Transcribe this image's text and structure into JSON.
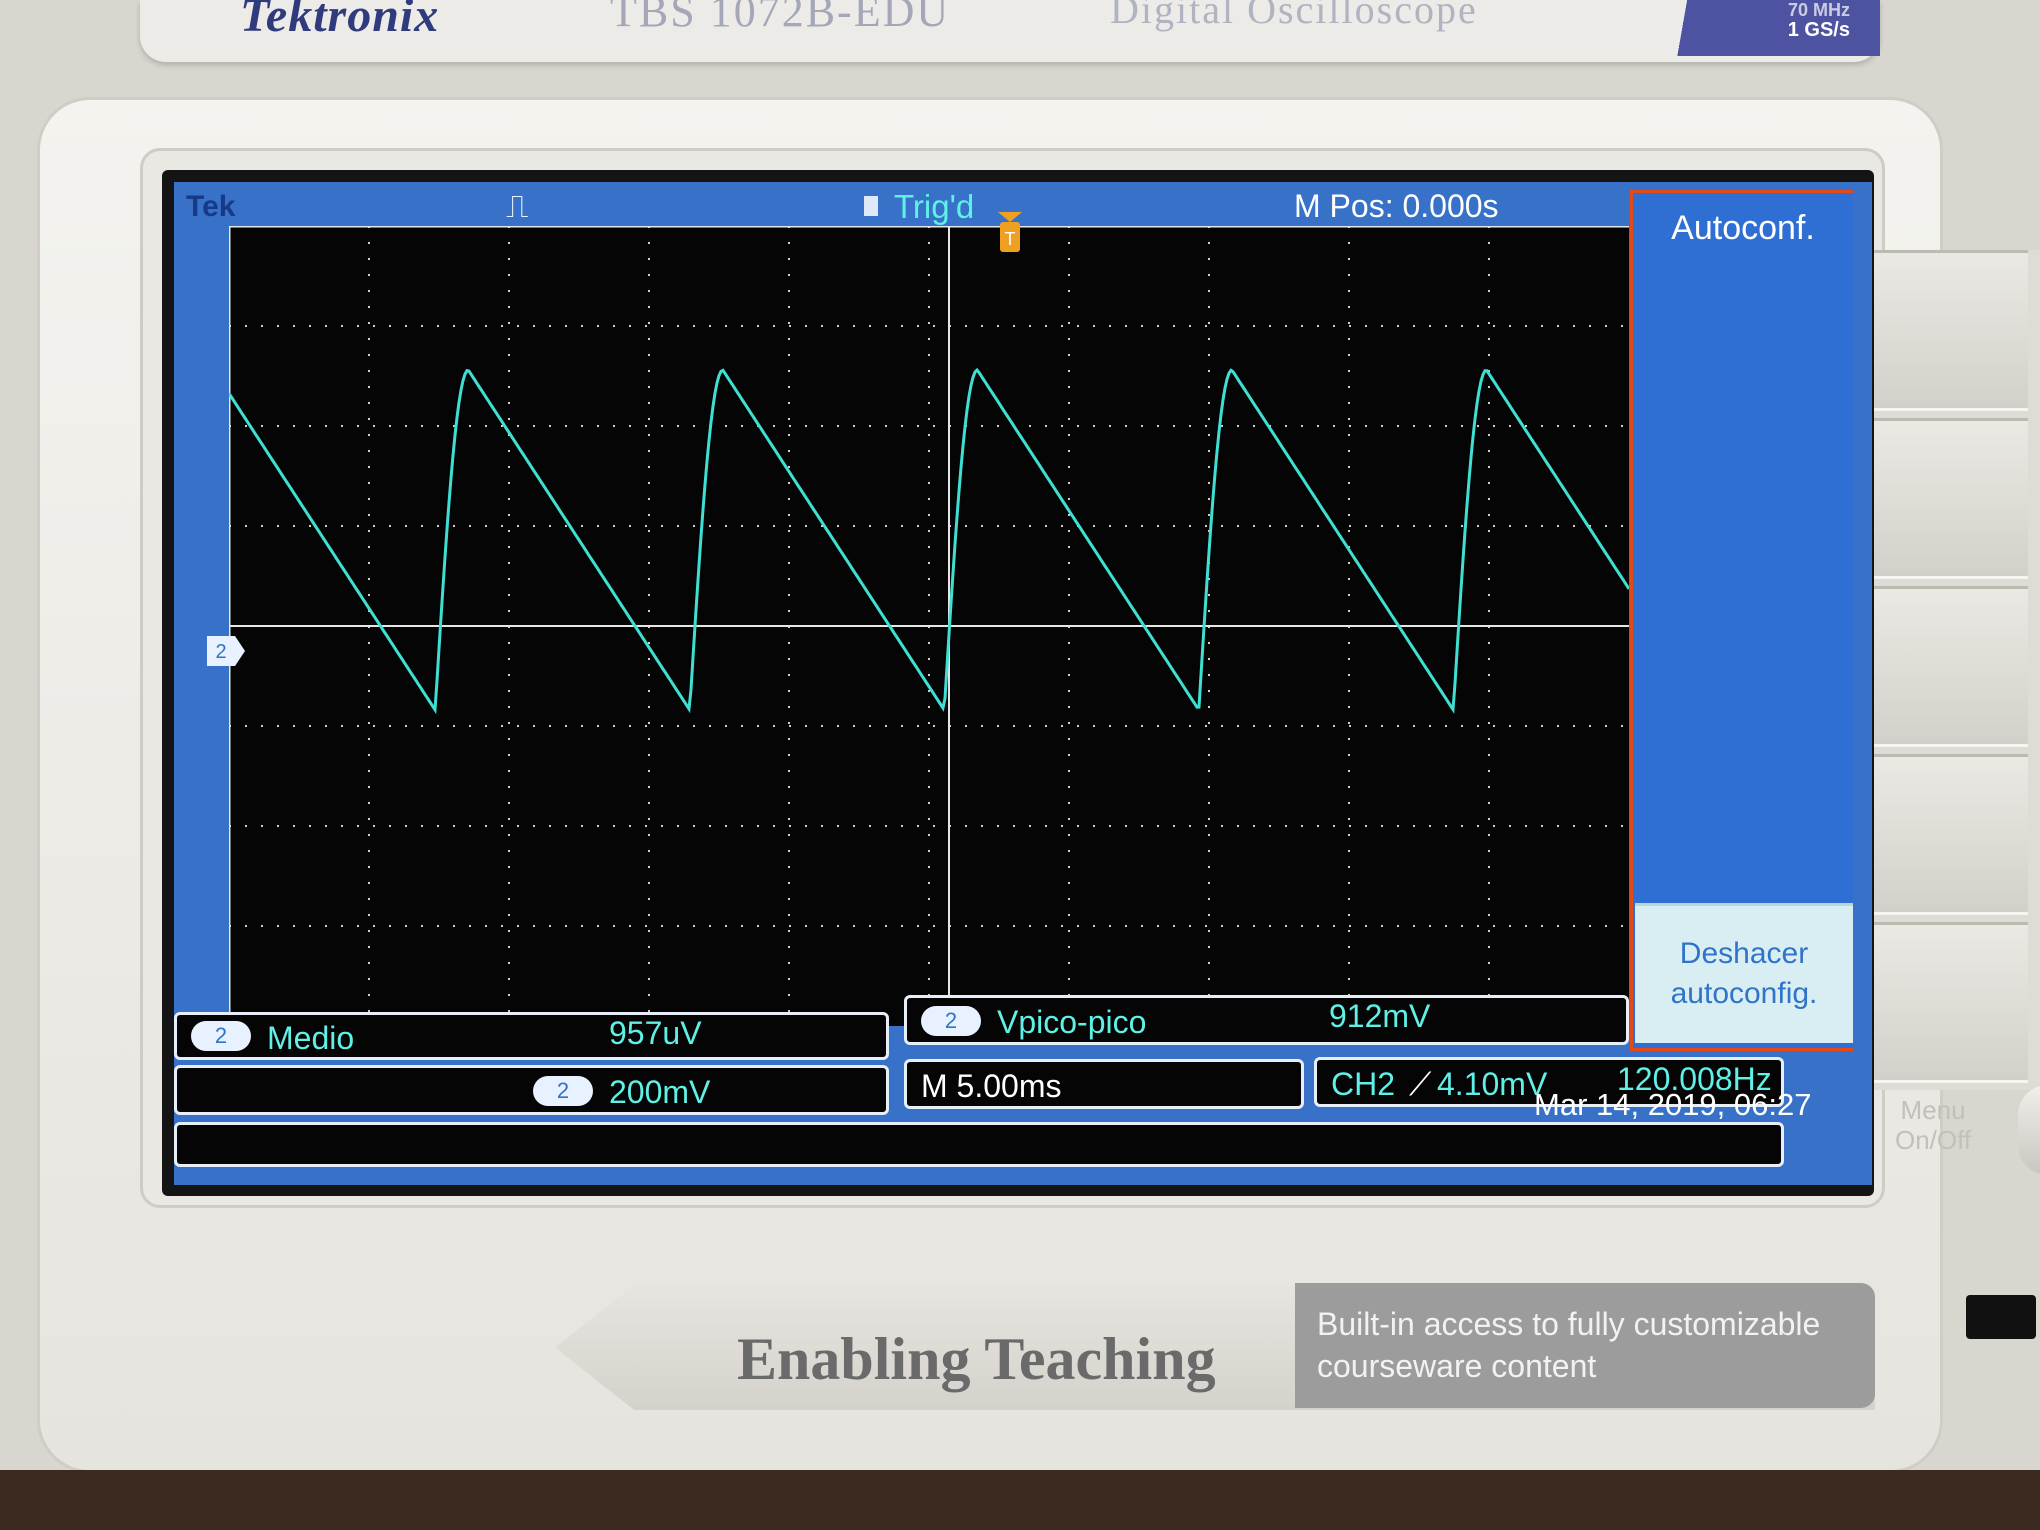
{
  "device": {
    "brand": "Tektronix",
    "model": "TBS 1072B-EDU",
    "type": "Digital Oscilloscope",
    "spec_line1": "70 MHz",
    "spec_line2": "1 GS/s"
  },
  "status_bar": {
    "logo": "Tek",
    "acquisition_glyph": "⎍",
    "trigger_state": "Trig'd",
    "horizontal_position": "M Pos: 0.000s"
  },
  "side_menu": {
    "title": "Autoconf.",
    "option_line1": "Deshacer",
    "option_line2": "autoconfig."
  },
  "measurements": [
    {
      "channel": "2",
      "name": "Medio",
      "value": "957uV"
    },
    {
      "channel": "2",
      "name": "Vpico-pico",
      "value": "912mV"
    }
  ],
  "channel_scale": {
    "channel": "2",
    "value": "200mV"
  },
  "timebase": "M 5.00ms",
  "trigger_readout": {
    "source": "CH2",
    "slope": "⟋",
    "level": "4.10mV",
    "frequency": "120.008Hz"
  },
  "datetime": "Mar 14, 2019, 06:27",
  "channel_marker": "2",
  "trigger_marker": "T",
  "menu_button": {
    "line1": "Menu",
    "line2": "On/Off"
  },
  "branding": {
    "slogan": "Enabling Teaching",
    "desc_line1": "Built-in access to fully customizable",
    "desc_line2": "courseware content"
  },
  "colors": {
    "trace": "#3fe0d3",
    "display_blue": "#3772c8",
    "menu_border": "#e24a1a"
  },
  "waveform": {
    "type": "sawtooth",
    "periods_visible": 5.5,
    "peak_fraction": 0.18,
    "trough_fraction": 0.605
  }
}
